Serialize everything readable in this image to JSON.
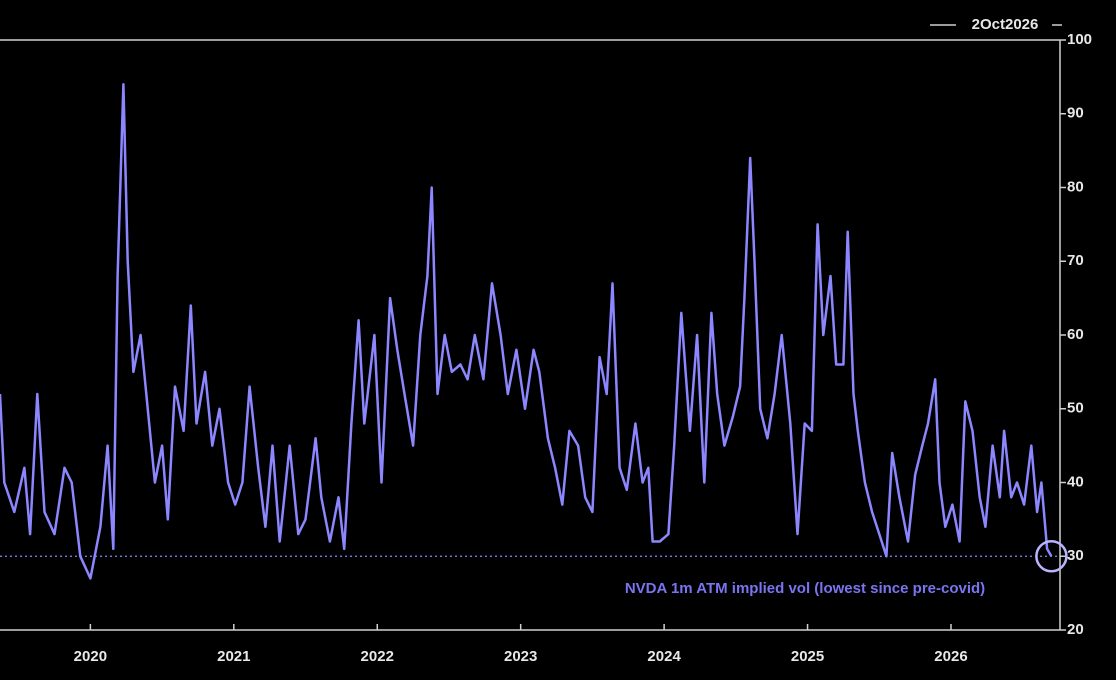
{
  "chart_data": {
    "type": "line",
    "annotation_date": "2Oct2026",
    "annotation": "NVDA 1m ATM implied vol (lowest since pre-covid)",
    "color": "#8c86ff",
    "ref_line": 30,
    "xlim": [
      2019.37,
      2026.76
    ],
    "xticks": [
      2020,
      2021,
      2022,
      2023,
      2024,
      2025,
      2026
    ],
    "ylim": [
      20,
      100
    ],
    "yticks": [
      20,
      30,
      40,
      50,
      60,
      70,
      80,
      90,
      100
    ],
    "x": [
      2019.37,
      2019.4,
      2019.47,
      2019.54,
      2019.58,
      2019.63,
      2019.68,
      2019.75,
      2019.82,
      2019.87,
      2019.93,
      2020.0,
      2020.07,
      2020.12,
      2020.16,
      2020.19,
      2020.23,
      2020.26,
      2020.3,
      2020.35,
      2020.39,
      2020.45,
      2020.5,
      2020.54,
      2020.59,
      2020.65,
      2020.7,
      2020.74,
      2020.8,
      2020.85,
      2020.9,
      2020.96,
      2021.01,
      2021.06,
      2021.11,
      2021.17,
      2021.22,
      2021.27,
      2021.32,
      2021.39,
      2021.45,
      2021.5,
      2021.57,
      2021.61,
      2021.67,
      2021.73,
      2021.77,
      2021.82,
      2021.87,
      2021.91,
      2021.98,
      2022.03,
      2022.09,
      2022.14,
      2022.19,
      2022.25,
      2022.3,
      2022.35,
      2022.38,
      2022.42,
      2022.47,
      2022.52,
      2022.58,
      2022.63,
      2022.68,
      2022.74,
      2022.8,
      2022.86,
      2022.91,
      2022.97,
      2023.03,
      2023.09,
      2023.13,
      2023.19,
      2023.24,
      2023.29,
      2023.34,
      2023.4,
      2023.45,
      2023.5,
      2023.55,
      2023.6,
      2023.64,
      2023.69,
      2023.74,
      2023.8,
      2023.85,
      2023.89,
      2023.92,
      2023.97,
      2024.03,
      2024.07,
      2024.12,
      2024.18,
      2024.23,
      2024.28,
      2024.33,
      2024.37,
      2024.42,
      2024.48,
      2024.53,
      2024.56,
      2024.6,
      2024.63,
      2024.67,
      2024.72,
      2024.77,
      2024.82,
      2024.88,
      2024.93,
      2024.98,
      2025.03,
      2025.07,
      2025.11,
      2025.16,
      2025.2,
      2025.25,
      2025.28,
      2025.32,
      2025.35,
      2025.4,
      2025.45,
      2025.5,
      2025.55,
      2025.59,
      2025.64,
      2025.7,
      2025.75,
      2025.8,
      2025.84,
      2025.89,
      2025.92,
      2025.96,
      2026.01,
      2026.06,
      2026.1,
      2026.15,
      2026.2,
      2026.24,
      2026.29,
      2026.34,
      2026.37,
      2026.42,
      2026.46,
      2026.51,
      2026.56,
      2026.6,
      2026.63,
      2026.67,
      2026.7
    ],
    "values": [
      52,
      40,
      36,
      42,
      33,
      52,
      36,
      33,
      42,
      40,
      30,
      27,
      34,
      45,
      31,
      68,
      94,
      70,
      55,
      60,
      52,
      40,
      45,
      35,
      53,
      47,
      64,
      48,
      55,
      45,
      50,
      40,
      37,
      40,
      53,
      42,
      34,
      45,
      32,
      45,
      33,
      35,
      46,
      38,
      32,
      38,
      31,
      48,
      62,
      48,
      60,
      40,
      65,
      58,
      52,
      45,
      60,
      68,
      80,
      52,
      60,
      55,
      56,
      54,
      60,
      54,
      67,
      60,
      52,
      58,
      50,
      58,
      55,
      46,
      42,
      37,
      47,
      45,
      38,
      36,
      57,
      52,
      67,
      42,
      39,
      48,
      40,
      42,
      32,
      32,
      33,
      45,
      63,
      47,
      60,
      40,
      63,
      52,
      45,
      49,
      53,
      65,
      84,
      70,
      50,
      46,
      52,
      60,
      48,
      33,
      48,
      47,
      75,
      60,
      68,
      56,
      56,
      74,
      52,
      47,
      40,
      36,
      33,
      30,
      44,
      38,
      32,
      41,
      45,
      48,
      54,
      40,
      34,
      37,
      32,
      51,
      47,
      38,
      34,
      45,
      38,
      47,
      38,
      40,
      37,
      45,
      36,
      40,
      31,
      30
    ]
  }
}
